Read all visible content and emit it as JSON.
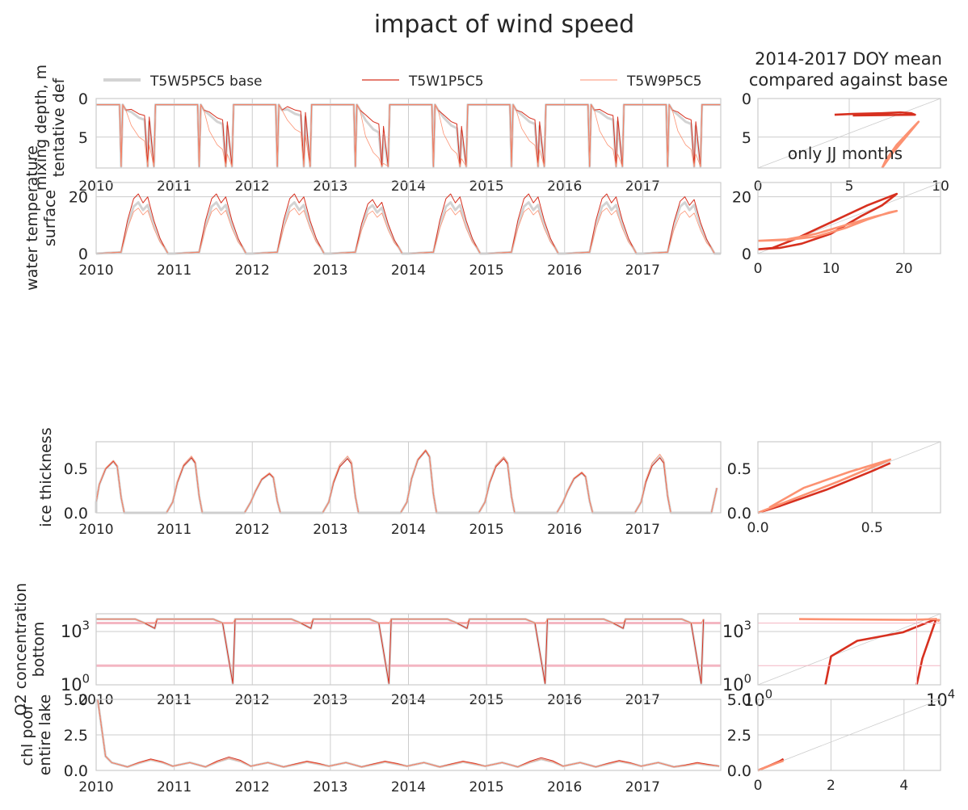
{
  "figure": {
    "title": "impact of wind speed",
    "legend": [
      {
        "label": "T5W5P5C5 base",
        "color": "#d3d3d3"
      },
      {
        "label": "T5W1P5C5",
        "color": "#d7301f"
      },
      {
        "label": "T5W9P5C5",
        "color": "#fc9272"
      }
    ],
    "right_title": [
      "2014-2017 DOY mean",
      "compared against base"
    ],
    "annotation": "only JJ months"
  },
  "chart_data": [
    {
      "type": "line",
      "ylabel": [
        "mixing depth, m",
        "tentative def"
      ],
      "x_ticks": [
        "2010",
        "2011",
        "2012",
        "2013",
        "2014",
        "2015",
        "2016",
        "2017"
      ],
      "y_ticks": [
        "0",
        "5"
      ],
      "ylim": [
        9,
        0
      ],
      "series": [
        {
          "name": "T5W5P5C5 base",
          "summer_values": [
            2.5,
            3.0,
            2.0,
            4.0,
            3.5,
            3.0,
            2.5,
            3.0
          ]
        },
        {
          "name": "T5W1P5C5",
          "summer_values": [
            2.0,
            2.5,
            1.5,
            3.0,
            3.0,
            2.5,
            2.0,
            2.5
          ]
        },
        {
          "name": "T5W9P5C5",
          "summer_values": [
            5.0,
            6.0,
            4.0,
            7.0,
            6.5,
            5.5,
            6.0,
            6.0
          ]
        }
      ]
    },
    {
      "type": "scatter",
      "x_ticks": [
        "0",
        "5",
        "10"
      ],
      "y_ticks": [
        "0",
        "5"
      ],
      "xlim": [
        0,
        10
      ],
      "ylim": [
        9,
        0
      ]
    },
    {
      "type": "line",
      "ylabel": [
        "water temperature",
        "surface"
      ],
      "x_ticks": [
        "2010",
        "2011",
        "2012",
        "2013",
        "2014",
        "2015",
        "2016",
        "2017"
      ],
      "y_ticks": [
        "0",
        "20"
      ],
      "ylim": [
        0,
        25
      ],
      "series": [
        {
          "name": "T5W5P5C5 base",
          "peak_values": [
            18,
            18,
            18,
            17,
            18,
            18,
            18,
            18
          ]
        },
        {
          "name": "T5W1P5C5",
          "peak_values": [
            21,
            21,
            21,
            19,
            21,
            21,
            21,
            20
          ]
        },
        {
          "name": "T5W9P5C5",
          "peak_values": [
            16,
            16,
            16,
            15,
            16,
            16,
            16,
            15
          ]
        }
      ]
    },
    {
      "type": "scatter",
      "x_ticks": [
        "0",
        "10",
        "20"
      ],
      "y_ticks": [
        "0",
        "20"
      ],
      "xlim": [
        0,
        25
      ],
      "ylim": [
        0,
        25
      ]
    },
    {
      "type": "line",
      "ylabel": [
        "ice thickness"
      ],
      "x_ticks": [
        "2010",
        "2011",
        "2012",
        "2013",
        "2014",
        "2015",
        "2016",
        "2017"
      ],
      "y_ticks": [
        "0.0",
        "0.5"
      ],
      "ylim": [
        0,
        0.8
      ],
      "series": [
        {
          "name": "T5W5P5C5 base",
          "peak_values": [
            0.58,
            0.62,
            0.44,
            0.62,
            0.7,
            0.62,
            0.45,
            0.63
          ]
        },
        {
          "name": "T5W1P5C5",
          "peak_values": [
            0.58,
            0.62,
            0.44,
            0.61,
            0.7,
            0.61,
            0.45,
            0.62
          ]
        },
        {
          "name": "T5W9P5C5",
          "peak_values": [
            0.59,
            0.64,
            0.45,
            0.64,
            0.71,
            0.63,
            0.46,
            0.66
          ]
        }
      ]
    },
    {
      "type": "scatter",
      "x_ticks": [
        "0.0",
        "0.5"
      ],
      "y_ticks": [
        "0.0",
        "0.5"
      ],
      "xlim": [
        0,
        0.8
      ],
      "ylim": [
        0,
        0.8
      ]
    },
    {
      "type": "line",
      "log_scale_y": true,
      "ylabel": [
        "O2 concentration",
        "bottom"
      ],
      "x_ticks": [
        "2010",
        "2011",
        "2012",
        "2013",
        "2014",
        "2015",
        "2016",
        "2017"
      ],
      "y_ticks": [
        "10^0",
        "10^3"
      ],
      "ylim": [
        1,
        10000
      ],
      "reference_lines": [
        3000,
        12
      ]
    },
    {
      "type": "scatter",
      "log_scale_y": true,
      "x_ticks": [
        "10^0",
        "10^4"
      ],
      "y_ticks": [
        "10^0",
        "10^3"
      ]
    },
    {
      "type": "line",
      "ylabel": [
        "chl poor",
        "entire lake"
      ],
      "x_ticks": [
        "2010",
        "2011",
        "2012",
        "2013",
        "2014",
        "2015",
        "2016",
        "2017"
      ],
      "y_ticks": [
        "0.0",
        "2.5",
        "5.0"
      ],
      "ylim": [
        0,
        5
      ],
      "series": [
        {
          "name": "T5W5P5C5 base",
          "summer_values": [
            0.75,
            0.85,
            0.6,
            0.6,
            0.6,
            0.8,
            0.65,
            0.5
          ]
        },
        {
          "name": "T5W1P5C5",
          "summer_values": [
            0.8,
            0.95,
            0.65,
            0.65,
            0.65,
            0.9,
            0.7,
            0.55
          ]
        },
        {
          "name": "T5W9P5C5",
          "summer_values": [
            0.75,
            0.85,
            0.6,
            0.6,
            0.6,
            0.8,
            0.65,
            0.5
          ]
        }
      ]
    },
    {
      "type": "scatter",
      "x_ticks": [
        "0",
        "2",
        "4"
      ],
      "y_ticks": [
        "0.0",
        "2.5",
        "5.0"
      ],
      "xlim": [
        0,
        5
      ],
      "ylim": [
        0,
        5
      ]
    }
  ]
}
